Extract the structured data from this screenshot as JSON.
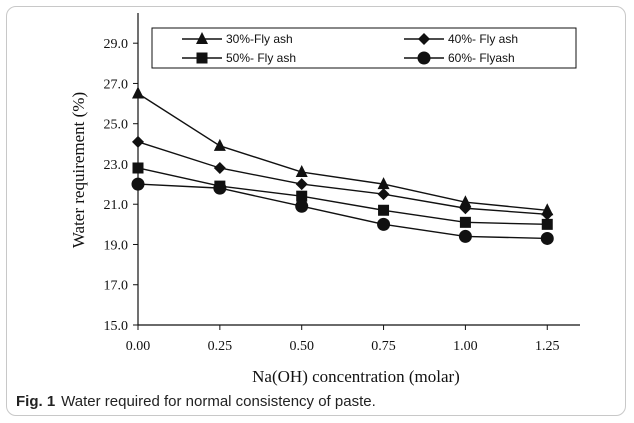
{
  "caption": {
    "label": "Fig. 1",
    "text": "Water required for normal consistency of paste."
  },
  "chart_data": {
    "type": "line",
    "xlabel": "Na(OH) concentration (molar)",
    "ylabel": "Water requirement (%)",
    "x": [
      0.0,
      0.25,
      0.5,
      0.75,
      1.0,
      1.25
    ],
    "x_tick_labels": [
      "0.00",
      "0.25",
      "0.50",
      "0.75",
      "1.00",
      "1.25"
    ],
    "y_tick_labels": [
      "15.0",
      "17.0",
      "19.0",
      "21.0",
      "23.0",
      "25.0",
      "27.0",
      "29.0"
    ],
    "xlim": [
      0.0,
      1.35
    ],
    "ylim": [
      15.0,
      30.5
    ],
    "grid": false,
    "legend_position": "top",
    "line_color": "#111111",
    "series": [
      {
        "name": "30%-Fly ash",
        "marker": "triangle",
        "values": [
          26.5,
          23.9,
          22.6,
          22.0,
          21.1,
          20.7
        ]
      },
      {
        "name": "40%- Fly ash",
        "marker": "diamond",
        "values": [
          24.1,
          22.8,
          22.0,
          21.5,
          20.8,
          20.5
        ]
      },
      {
        "name": "50%- Fly ash",
        "marker": "square",
        "values": [
          22.8,
          21.9,
          21.4,
          20.7,
          20.1,
          20.0
        ]
      },
      {
        "name": "60%- Flyash",
        "marker": "circle",
        "values": [
          22.0,
          21.8,
          20.9,
          20.0,
          19.4,
          19.3
        ]
      }
    ]
  }
}
